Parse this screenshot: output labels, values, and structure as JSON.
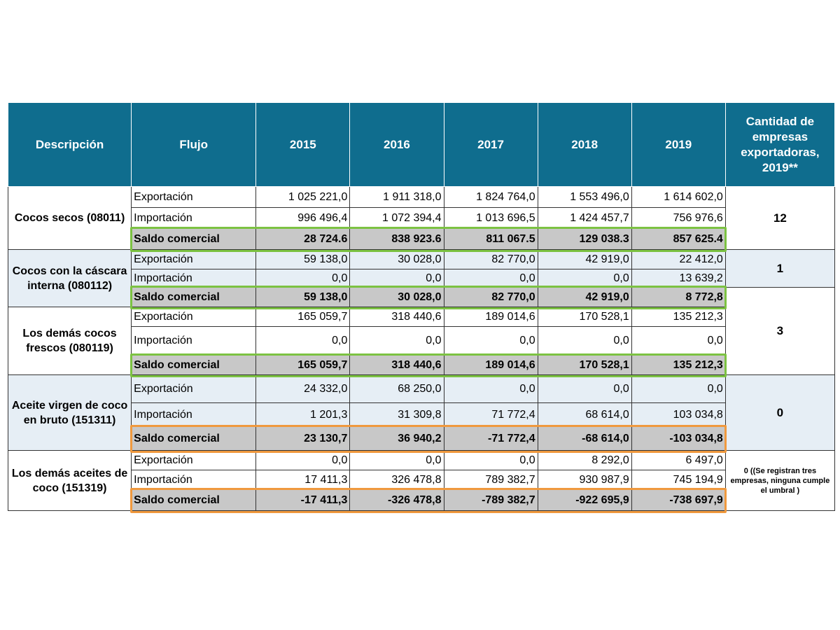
{
  "header": {
    "descripcion": "Descripción",
    "flujo": "Flujo",
    "years": [
      "2015",
      "2016",
      "2017",
      "2018",
      "2019"
    ],
    "cantidad": "Cantidad de empresas exportadoras, 2019**"
  },
  "groups": [
    {
      "descripcion": "Cocos secos (08011)",
      "cantidad": "12",
      "rows": [
        {
          "flujo": "Exportación",
          "values": [
            "1 025 221,0",
            "1 911 318,0",
            "1 824 764,0",
            "1 553 496,0",
            "1 614 602,0"
          ]
        },
        {
          "flujo": "Importación",
          "values": [
            "996 496,4",
            "1 072 394,4",
            "1 013 696,5",
            "1 424 457,7",
            "756 976,6"
          ]
        },
        {
          "flujo": "Saldo comercial",
          "values": [
            "28 724.6",
            "838 923.6",
            "811 067.5",
            "129 038.3",
            "857 625.4"
          ]
        }
      ]
    },
    {
      "descripcion": "Cocos con la cáscara interna (080112)",
      "cantidad": "1",
      "rows": [
        {
          "flujo": "Exportación",
          "values": [
            "59 138,0",
            "30 028,0",
            "82 770,0",
            "42 919,0",
            "22 412,0"
          ]
        },
        {
          "flujo": "Importación",
          "values": [
            "0,0",
            "0,0",
            "0,0",
            "0,0",
            "13 639,2"
          ]
        },
        {
          "flujo": "Saldo comercial",
          "values": [
            "59 138,0",
            "30 028,0",
            "82 770,0",
            "42 919,0",
            "8 772,8"
          ]
        }
      ]
    },
    {
      "descripcion": "Los demás cocos frescos (080119)",
      "cantidad": "3",
      "rows": [
        {
          "flujo": "Exportación",
          "values": [
            "165 059,7",
            "318 440,6",
            "189 014,6",
            "170 528,1",
            "135 212,3"
          ]
        },
        {
          "flujo": "Importación",
          "values": [
            "0,0",
            "0,0",
            "0,0",
            "0,0",
            "0,0"
          ]
        },
        {
          "flujo": "Saldo comercial",
          "values": [
            "165 059,7",
            "318 440,6",
            "189 014,6",
            "170 528,1",
            "135 212,3"
          ]
        }
      ]
    },
    {
      "descripcion": "Aceite virgen de coco en bruto (151311)",
      "cantidad": "0",
      "rows": [
        {
          "flujo": "Exportación",
          "values": [
            "24 332,0",
            "68 250,0",
            "0,0",
            "0,0",
            "0,0"
          ]
        },
        {
          "flujo": "Importación",
          "values": [
            "1 201,3",
            "31 309,8",
            "71 772,4",
            "68 614,0",
            "103 034,8"
          ]
        },
        {
          "flujo": "Saldo comercial",
          "values": [
            "23 130,7",
            "36 940,2",
            "-71 772,4",
            "-68 614,0",
            "-103 034,8"
          ]
        }
      ]
    },
    {
      "descripcion": "Los demás aceites de coco (151319)",
      "cantidad": "0 ((Se registran tres empresas, ninguna cumple el umbral )",
      "rows": [
        {
          "flujo": "Exportación",
          "values": [
            "0,0",
            "0,0",
            "0,0",
            "8 292,0",
            "6 497,0"
          ]
        },
        {
          "flujo": "Importación",
          "values": [
            "17 411,3",
            "326 478,8",
            "789 382,7",
            "930 987,9",
            "745 194,9"
          ]
        },
        {
          "flujo": "Saldo comercial",
          "values": [
            "-17 411,3",
            "-326 478,8",
            "-789 382,7",
            "-922 695,9",
            "-738 697,9"
          ]
        }
      ]
    }
  ],
  "colors": {
    "header_bg": "#0f6d8e",
    "saldo_bg": "#c8c8c8",
    "alt_bg": "#e6eef5",
    "highlight_positive": "#7cc242",
    "highlight_negative": "#f0993e"
  }
}
